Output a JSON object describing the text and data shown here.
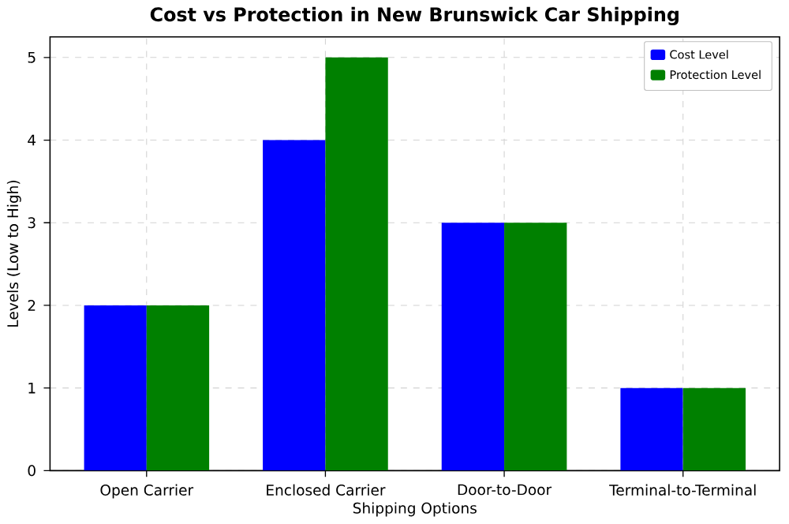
{
  "chart_data": {
    "type": "bar",
    "title": "Cost vs Protection in New Brunswick Car Shipping",
    "xlabel": "Shipping Options",
    "ylabel": "Levels (Low to High)",
    "categories": [
      "Open Carrier",
      "Enclosed Carrier",
      "Door-to-Door",
      "Terminal-to-Terminal"
    ],
    "series": [
      {
        "name": "Cost Level",
        "color": "#0000ff",
        "values": [
          2,
          4,
          3,
          1
        ]
      },
      {
        "name": "Protection Level",
        "color": "#008000",
        "values": [
          2,
          5,
          3,
          1
        ]
      }
    ],
    "ylim": [
      0,
      5.25
    ],
    "yticks": [
      0,
      1,
      2,
      3,
      4,
      5
    ],
    "grid": true,
    "legend": "top right"
  }
}
